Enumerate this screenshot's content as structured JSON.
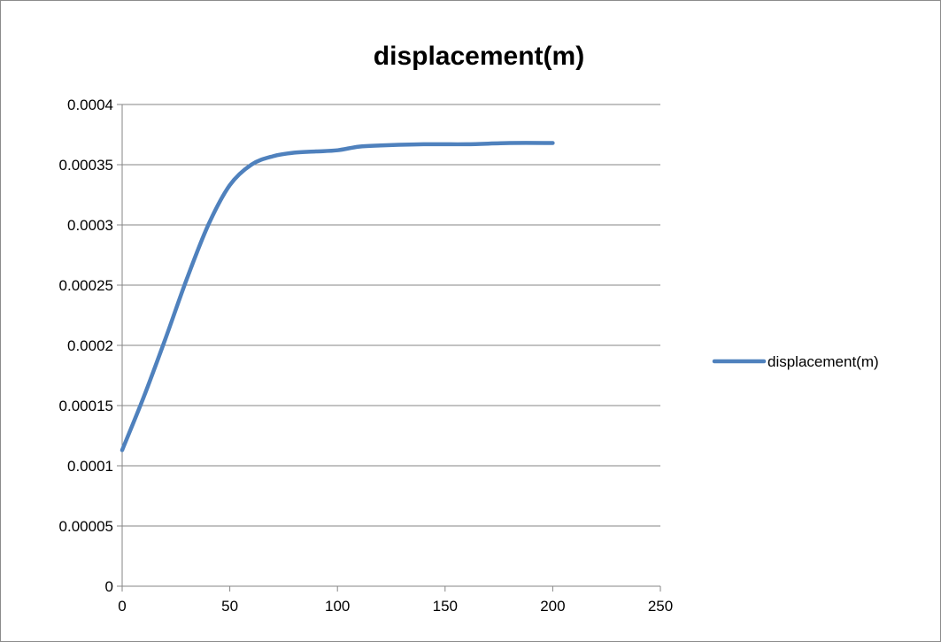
{
  "chart_data": {
    "type": "line",
    "title": "displacement(m)",
    "xlabel": "",
    "ylabel": "",
    "xlim": [
      0,
      250
    ],
    "ylim": [
      0,
      0.0004
    ],
    "x_ticks": [
      "0",
      "50",
      "100",
      "150",
      "200",
      "250"
    ],
    "y_ticks": [
      "0",
      "0.00005",
      "0.0001",
      "0.00015",
      "0.0002",
      "0.00025",
      "0.0003",
      "0.00035",
      "0.0004"
    ],
    "grid": "horizontal",
    "legend_position": "right",
    "series": [
      {
        "name": "displacement(m)",
        "color": "#4f81bd",
        "x": [
          0,
          10,
          20,
          30,
          40,
          50,
          60,
          70,
          80,
          90,
          100,
          110,
          120,
          140,
          160,
          180,
          200
        ],
        "y": [
          0.000113,
          0.000157,
          0.000205,
          0.000255,
          0.0003,
          0.000333,
          0.00035,
          0.000357,
          0.00036,
          0.000361,
          0.000362,
          0.000365,
          0.000366,
          0.000367,
          0.000367,
          0.000368,
          0.000368
        ]
      }
    ]
  }
}
